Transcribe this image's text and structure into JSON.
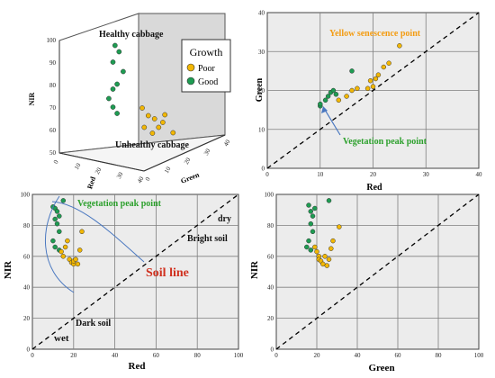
{
  "colors": {
    "good": "#1e9c52",
    "poor": "#f2b705",
    "plot_bg": "#ececec",
    "grid": "#7f7f7f",
    "orange_text": "#f39c12",
    "green_text": "#2ca02c",
    "red_text": "#d0301e",
    "curve": "#4a78c0"
  },
  "chart_data": [
    {
      "id": "panel-3d",
      "type": "scatter",
      "title": "",
      "xlabel": "Red",
      "ylabel": "Green",
      "zlabel": "NIR",
      "xlim": [
        0,
        40
      ],
      "ylim": [
        0,
        40
      ],
      "zlim": [
        50,
        100
      ],
      "x_ticks": [
        "0",
        "10",
        "20",
        "30",
        "40"
      ],
      "y_ticks": [
        "0",
        "10",
        "20",
        "30",
        "40"
      ],
      "z_ticks": [
        "50",
        "60",
        "70",
        "80",
        "90",
        "100"
      ],
      "legend": {
        "title": "Growth",
        "entries": [
          "Poor",
          "Good"
        ],
        "position": "top-right"
      },
      "annotations": [
        "Healthy cabbage",
        "Unhealthy cabbage"
      ],
      "series": [
        {
          "name": "Good",
          "points": [
            [
              10,
              17,
              93
            ],
            [
              11,
              18,
              90
            ],
            [
              10,
              16,
              86
            ],
            [
              12,
              19,
              81
            ],
            [
              11,
              17,
              76
            ],
            [
              10,
              16,
              74
            ],
            [
              9,
              15,
              70
            ],
            [
              10,
              16,
              66
            ],
            [
              11,
              17,
              63
            ]
          ]
        },
        {
          "name": "Poor",
          "points": [
            [
              20,
              20,
              66
            ],
            [
              21,
              22,
              62
            ],
            [
              22,
              24,
              60
            ],
            [
              24,
              26,
              58
            ],
            [
              23,
              25,
              56
            ],
            [
              22,
              23,
              54
            ],
            [
              25,
              30,
              52
            ],
            [
              20,
              21,
              57
            ],
            [
              24,
              27,
              61
            ]
          ]
        }
      ]
    },
    {
      "id": "panel-red-green",
      "type": "scatter",
      "xlabel": "Red",
      "ylabel": "Green",
      "xlim": [
        0,
        40
      ],
      "ylim": [
        0,
        40
      ],
      "x_ticks": [
        "0",
        "10",
        "20",
        "30",
        "40"
      ],
      "y_ticks": [
        "0",
        "10",
        "20",
        "30",
        "40"
      ],
      "grid": true,
      "reference_line": "1:1",
      "annotations": [
        "Yellow senescence point",
        "Vegetation peak point"
      ],
      "series": [
        {
          "name": "Good",
          "points": [
            [
              10,
              16
            ],
            [
              10,
              16.5
            ],
            [
              11,
              17.5
            ],
            [
              11.5,
              18.5
            ],
            [
              12,
              19.5
            ],
            [
              12.5,
              20
            ],
            [
              13,
              19
            ],
            [
              16,
              25
            ]
          ]
        },
        {
          "name": "Poor",
          "points": [
            [
              13.5,
              17.5
            ],
            [
              15,
              18.5
            ],
            [
              16,
              20
            ],
            [
              17,
              20.5
            ],
            [
              19,
              20.5
            ],
            [
              20,
              21
            ],
            [
              20.5,
              23
            ],
            [
              21,
              24
            ],
            [
              22,
              26
            ],
            [
              23,
              27
            ],
            [
              25,
              31.5
            ],
            [
              19.5,
              22.5
            ]
          ]
        }
      ]
    },
    {
      "id": "panel-red-nir",
      "type": "scatter",
      "xlabel": "Red",
      "ylabel": "NIR",
      "xlim": [
        0,
        100
      ],
      "ylim": [
        0,
        100
      ],
      "x_ticks": [
        "0",
        "20",
        "40",
        "60",
        "80",
        "100"
      ],
      "y_ticks": [
        "0",
        "20",
        "40",
        "60",
        "80",
        "100"
      ],
      "grid": true,
      "reference_line": "Soil line",
      "annotations": [
        "Vegetation peak point",
        "dry",
        "Bright soil",
        "Soil line",
        "Dark soil",
        "wet"
      ],
      "series": [
        {
          "name": "Good",
          "points": [
            [
              10,
              92
            ],
            [
              11,
              91
            ],
            [
              12,
              89
            ],
            [
              13,
              86
            ],
            [
              11,
              84
            ],
            [
              12,
              81
            ],
            [
              13,
              76
            ],
            [
              10,
              70
            ],
            [
              11,
              66
            ],
            [
              13,
              64
            ],
            [
              15,
              96
            ]
          ]
        },
        {
          "name": "Poor",
          "points": [
            [
              14,
              63
            ],
            [
              15,
              60
            ],
            [
              16,
              66
            ],
            [
              17,
              70
            ],
            [
              18,
              58
            ],
            [
              19,
              56
            ],
            [
              20,
              55
            ],
            [
              20,
              57
            ],
            [
              21,
              58
            ],
            [
              22,
              55
            ],
            [
              24,
              76
            ],
            [
              23,
              64
            ]
          ]
        }
      ]
    },
    {
      "id": "panel-green-nir",
      "type": "scatter",
      "xlabel": "Green",
      "ylabel": "NIR",
      "xlim": [
        0,
        100
      ],
      "ylim": [
        0,
        100
      ],
      "x_ticks": [
        "0",
        "20",
        "40",
        "60",
        "80",
        "100"
      ],
      "y_ticks": [
        "0",
        "20",
        "40",
        "60",
        "80",
        "100"
      ],
      "grid": true,
      "reference_line": "1:1",
      "annotations": [],
      "series": [
        {
          "name": "Good",
          "points": [
            [
              16,
              93
            ],
            [
              17,
              89
            ],
            [
              18,
              86
            ],
            [
              17,
              81
            ],
            [
              18,
              76
            ],
            [
              16,
              70
            ],
            [
              15,
              66
            ],
            [
              17,
              64
            ],
            [
              19,
              91
            ],
            [
              26,
              96
            ]
          ]
        },
        {
          "name": "Poor",
          "points": [
            [
              19,
              66
            ],
            [
              20,
              63
            ],
            [
              21,
              60
            ],
            [
              21,
              58
            ],
            [
              22,
              57
            ],
            [
              23,
              55
            ],
            [
              24,
              60
            ],
            [
              25,
              54
            ],
            [
              26,
              58
            ],
            [
              27,
              65
            ],
            [
              28,
              70
            ],
            [
              31,
              79
            ]
          ]
        }
      ]
    }
  ]
}
